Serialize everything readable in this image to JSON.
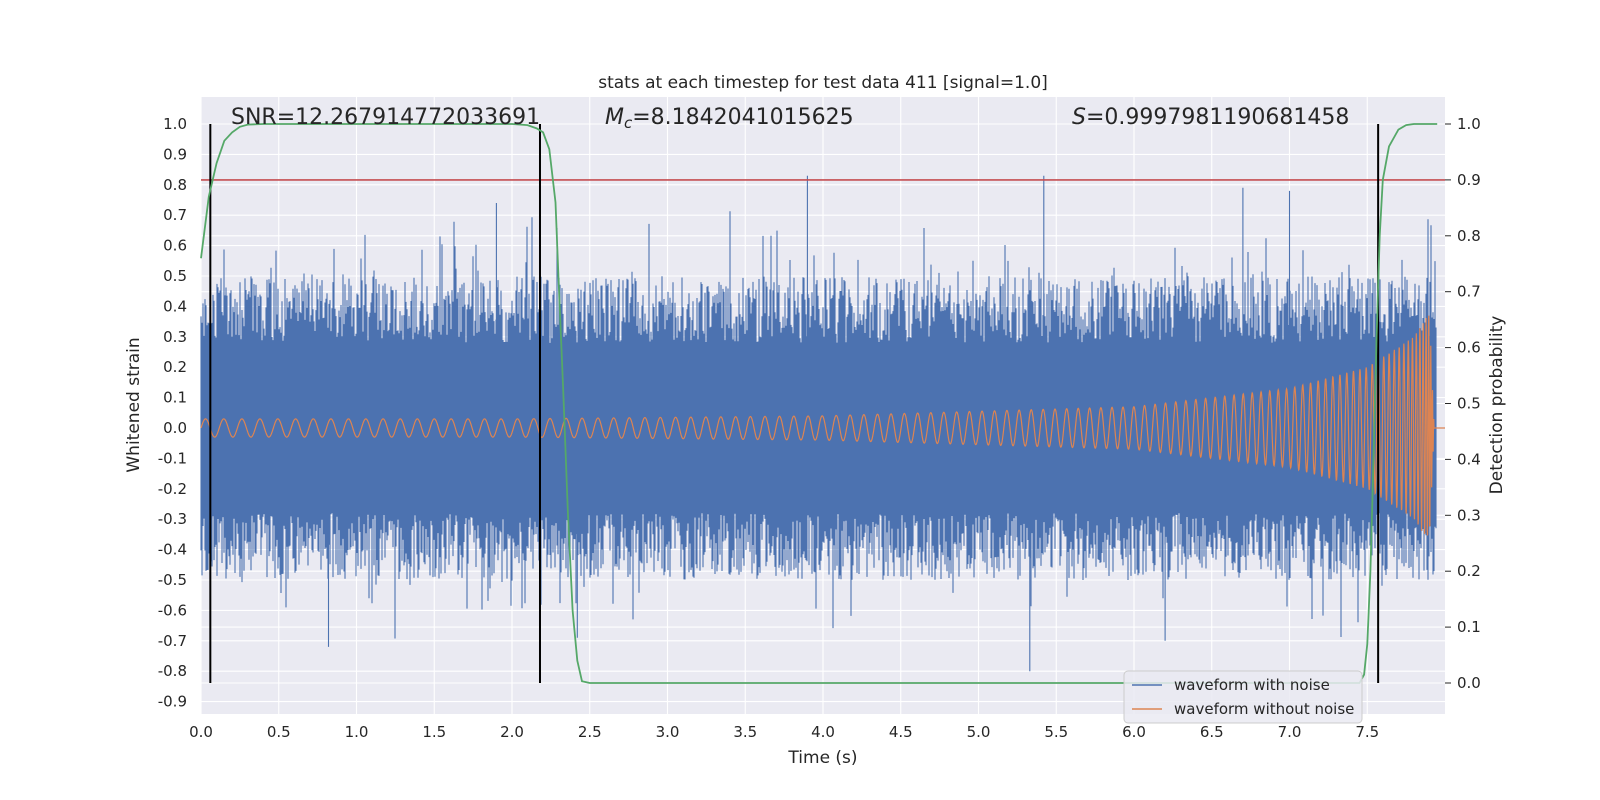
{
  "chart_data": {
    "type": "line",
    "title": "stats at each timestep for test data 411 [signal=1.0]",
    "xlabel": "Time (s)",
    "ylabel": "Whitened strain",
    "y2label": "Detection probability",
    "xlim": [
      0.0,
      8.0
    ],
    "ylim": [
      -0.9,
      1.05
    ],
    "y2lim": [
      -0.05,
      1.0
    ],
    "xticks": [
      "0.0",
      "0.5",
      "1.0",
      "1.5",
      "2.0",
      "2.5",
      "3.0",
      "3.5",
      "4.0",
      "4.5",
      "5.0",
      "5.5",
      "6.0",
      "6.5",
      "7.0",
      "7.5"
    ],
    "yticks": [
      "-0.9",
      "-0.8",
      "-0.7",
      "-0.6",
      "-0.5",
      "-0.4",
      "-0.3",
      "-0.2",
      "-0.1",
      "0.0",
      "0.1",
      "0.2",
      "0.3",
      "0.4",
      "0.5",
      "0.6",
      "0.7",
      "0.8",
      "0.9",
      "1.0"
    ],
    "y2ticks": [
      "0.0",
      "0.1",
      "0.2",
      "0.3",
      "0.4",
      "0.5",
      "0.6",
      "0.7",
      "0.8",
      "0.9",
      "1.0"
    ],
    "grid": true,
    "legend_position": "bottom-right",
    "annotations": {
      "snr": "SNR=12.267914772033691",
      "mc_symbol": "M",
      "mc_sub": "c",
      "mc_value": "=8.1842041015625",
      "s_symbol": "S",
      "s_value": "=0.9997981190681458"
    },
    "series": [
      {
        "name": "waveform with noise",
        "color": "#4c72b0",
        "description": "noisy whitened strain, envelope approx",
        "envelope": {
          "typical_upper": 0.5,
          "typical_lower": -0.5,
          "max": 0.83,
          "min": -0.8
        }
      },
      {
        "name": "waveform without noise",
        "color": "#dd8452",
        "description": "chirp signal, amplitude grows toward merger",
        "amplitude": [
          [
            0.0,
            0.03
          ],
          [
            2.0,
            0.03
          ],
          [
            4.0,
            0.04
          ],
          [
            6.0,
            0.07
          ],
          [
            7.0,
            0.13
          ],
          [
            7.5,
            0.2
          ],
          [
            7.8,
            0.3
          ],
          [
            7.9,
            0.38
          ],
          [
            7.93,
            0.0
          ],
          [
            8.0,
            0.0
          ]
        ]
      },
      {
        "name": "detection probability",
        "color": "#55a868",
        "axis": "right",
        "points": [
          [
            0.0,
            0.76
          ],
          [
            0.05,
            0.87
          ],
          [
            0.1,
            0.93
          ],
          [
            0.15,
            0.97
          ],
          [
            0.2,
            0.985
          ],
          [
            0.25,
            0.995
          ],
          [
            0.3,
            0.999
          ],
          [
            0.4,
            1.0
          ],
          [
            2.0,
            1.0
          ],
          [
            2.1,
            0.998
          ],
          [
            2.16,
            0.992
          ],
          [
            2.2,
            0.985
          ],
          [
            2.24,
            0.955
          ],
          [
            2.28,
            0.86
          ],
          [
            2.3,
            0.72
          ],
          [
            2.33,
            0.52
          ],
          [
            2.36,
            0.3
          ],
          [
            2.39,
            0.13
          ],
          [
            2.42,
            0.04
          ],
          [
            2.45,
            0.003
          ],
          [
            2.5,
            0.0
          ],
          [
            7.45,
            0.0
          ],
          [
            7.48,
            0.015
          ],
          [
            7.5,
            0.07
          ],
          [
            7.52,
            0.2
          ],
          [
            7.54,
            0.4
          ],
          [
            7.56,
            0.62
          ],
          [
            7.58,
            0.8
          ],
          [
            7.6,
            0.9
          ],
          [
            7.64,
            0.96
          ],
          [
            7.7,
            0.99
          ],
          [
            7.75,
            0.998
          ],
          [
            7.8,
            1.0
          ],
          [
            7.95,
            1.0
          ]
        ]
      }
    ],
    "threshold": {
      "value": 0.9,
      "axis": "right",
      "color": "#c44e52"
    },
    "event_lines": {
      "color": "#000000",
      "x": [
        0.06,
        2.18,
        7.57
      ]
    }
  }
}
